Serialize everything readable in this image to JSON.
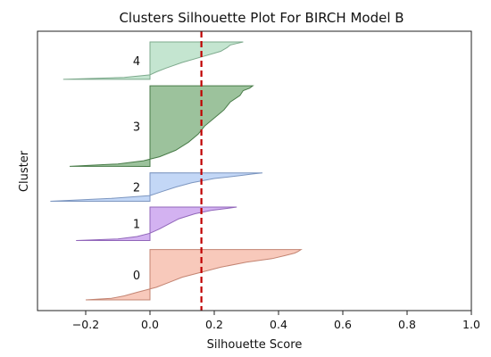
{
  "chart_data": {
    "type": "area",
    "title": "Clusters Silhouette Plot For BIRCH Model B",
    "xlabel": "Silhouette Score",
    "ylabel": "Cluster",
    "xlim": [
      -0.35,
      1.0
    ],
    "xticks": [
      "−0.2",
      "0.0",
      "0.2",
      "0.4",
      "0.6",
      "0.8",
      "1.0"
    ],
    "xtick_values": [
      -0.2,
      0.0,
      0.2,
      0.4,
      0.6,
      0.8,
      1.0
    ],
    "grid": false,
    "average_silhouette_score": 0.16,
    "average_line_color": "#c00000",
    "clusters": [
      {
        "label": "0",
        "color": "#f4a58e",
        "range": [
          0.0,
          0.78
        ],
        "profile": [
          [
            0.0,
            -0.2
          ],
          [
            0.03,
            -0.12
          ],
          [
            0.08,
            -0.08
          ],
          [
            0.15,
            -0.04
          ],
          [
            0.25,
            0.02
          ],
          [
            0.35,
            0.06
          ],
          [
            0.45,
            0.1
          ],
          [
            0.55,
            0.16
          ],
          [
            0.65,
            0.22
          ],
          [
            0.75,
            0.3
          ],
          [
            0.82,
            0.38
          ],
          [
            0.88,
            0.42
          ],
          [
            0.93,
            0.45
          ],
          [
            0.96,
            0.46
          ],
          [
            1.0,
            0.47
          ]
        ]
      },
      {
        "label": "1",
        "color": "#b57fe8",
        "range": [
          0.92,
          1.44
        ],
        "profile": [
          [
            0.0,
            -0.23
          ],
          [
            0.05,
            -0.1
          ],
          [
            0.12,
            -0.04
          ],
          [
            0.22,
            0.0
          ],
          [
            0.35,
            0.03
          ],
          [
            0.5,
            0.06
          ],
          [
            0.65,
            0.09
          ],
          [
            0.8,
            0.14
          ],
          [
            0.9,
            0.19
          ],
          [
            0.96,
            0.24
          ],
          [
            1.0,
            0.27
          ]
        ]
      },
      {
        "label": "2",
        "color": "#9bbcf0",
        "range": [
          1.53,
          1.97
        ],
        "profile": [
          [
            0.0,
            -0.31
          ],
          [
            0.1,
            -0.12
          ],
          [
            0.2,
            0.0
          ],
          [
            0.35,
            0.04
          ],
          [
            0.5,
            0.08
          ],
          [
            0.65,
            0.13
          ],
          [
            0.8,
            0.2
          ],
          [
            0.9,
            0.28
          ],
          [
            0.96,
            0.32
          ],
          [
            1.0,
            0.35
          ]
        ]
      },
      {
        "label": "3",
        "color": "#5a9a5a",
        "range": [
          2.07,
          3.32
        ],
        "profile": [
          [
            0.0,
            -0.25
          ],
          [
            0.03,
            -0.1
          ],
          [
            0.07,
            -0.02
          ],
          [
            0.12,
            0.03
          ],
          [
            0.2,
            0.08
          ],
          [
            0.3,
            0.12
          ],
          [
            0.4,
            0.15
          ],
          [
            0.5,
            0.17
          ],
          [
            0.6,
            0.2
          ],
          [
            0.7,
            0.23
          ],
          [
            0.8,
            0.25
          ],
          [
            0.88,
            0.28
          ],
          [
            0.94,
            0.29
          ],
          [
            0.97,
            0.31
          ],
          [
            1.0,
            0.32
          ]
        ]
      },
      {
        "label": "4",
        "color": "#9dd4b0",
        "range": [
          3.42,
          4.0
        ],
        "profile": [
          [
            0.0,
            -0.27
          ],
          [
            0.05,
            -0.08
          ],
          [
            0.12,
            0.0
          ],
          [
            0.2,
            0.02
          ],
          [
            0.3,
            0.05
          ],
          [
            0.45,
            0.1
          ],
          [
            0.6,
            0.16
          ],
          [
            0.75,
            0.22
          ],
          [
            0.85,
            0.24
          ],
          [
            0.92,
            0.25
          ],
          [
            0.96,
            0.27
          ],
          [
            1.0,
            0.29
          ]
        ]
      }
    ]
  }
}
